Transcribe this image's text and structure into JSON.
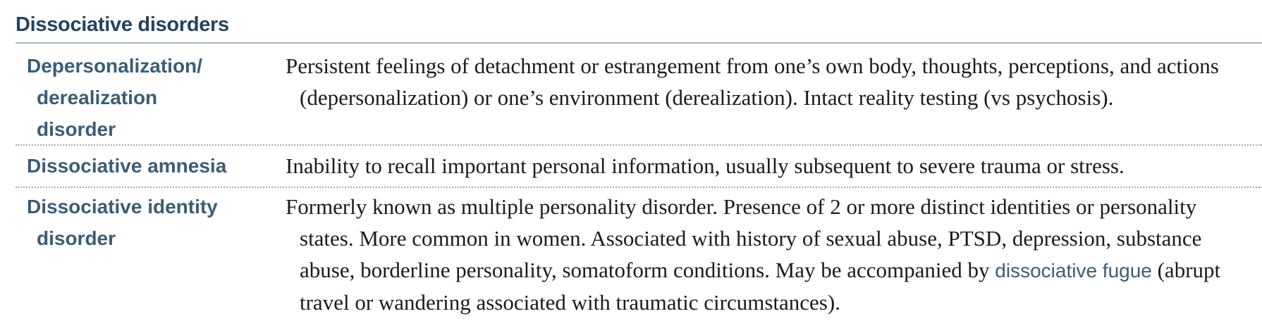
{
  "section": {
    "title": "Dissociative disorders"
  },
  "rows": [
    {
      "term_lines": [
        "Depersonalization/",
        "derealization",
        "disorder"
      ],
      "definition": "Persistent feelings of detachment or estrangement from one’s own body, thoughts, perceptions, and actions (depersonalization) or one’s environment (derealization). Intact reality testing (vs psychosis)."
    },
    {
      "term_lines": [
        "Dissociative amnesia"
      ],
      "definition": "Inability to recall important personal information, usually subsequent to severe trauma or stress."
    },
    {
      "term_lines": [
        "Dissociative identity",
        "disorder"
      ],
      "definition_before": "Formerly known as multiple personality disorder. Presence of 2 or more distinct identities or personality states. More common in women. Associated with history of sexual abuse, PTSD, depression, substance abuse, borderline personality, somatoform conditions. May be accompanied by ",
      "definition_highlight": "dissociative fugue",
      "definition_after": " (abrupt travel or wandering associated with traumatic circumstances)."
    }
  ],
  "colors": {
    "title": "#23445e",
    "term": "#3a5d76",
    "body_text": "#1b1b1b",
    "title_rule": "#9fb6c3",
    "row_divider": "#a8a8a8"
  }
}
